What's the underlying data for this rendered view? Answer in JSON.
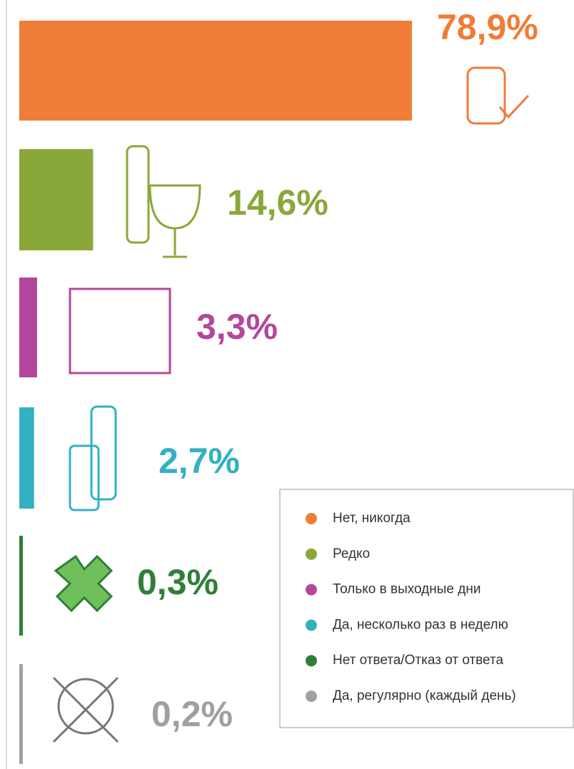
{
  "chart_data": {
    "type": "bar",
    "orientation": "horizontal",
    "categories": [
      "Нет, никогда",
      "Редко",
      "Только в выходные дни",
      "Да, несколько раз в неделю",
      "Нет ответа/Отказ от ответа",
      "Да, регулярно (каждый день)"
    ],
    "values": [
      78.9,
      14.6,
      3.3,
      2.7,
      0.3,
      0.2
    ],
    "value_labels": [
      "78,9%",
      "14,6%",
      "3,3%",
      "2,7%",
      "0,3%",
      "0,2%"
    ],
    "colors": [
      "#ef7d37",
      "#8aa83a",
      "#b3479b",
      "#33b1c2",
      "#2f7f3a",
      "#a0a0a0"
    ]
  }
}
